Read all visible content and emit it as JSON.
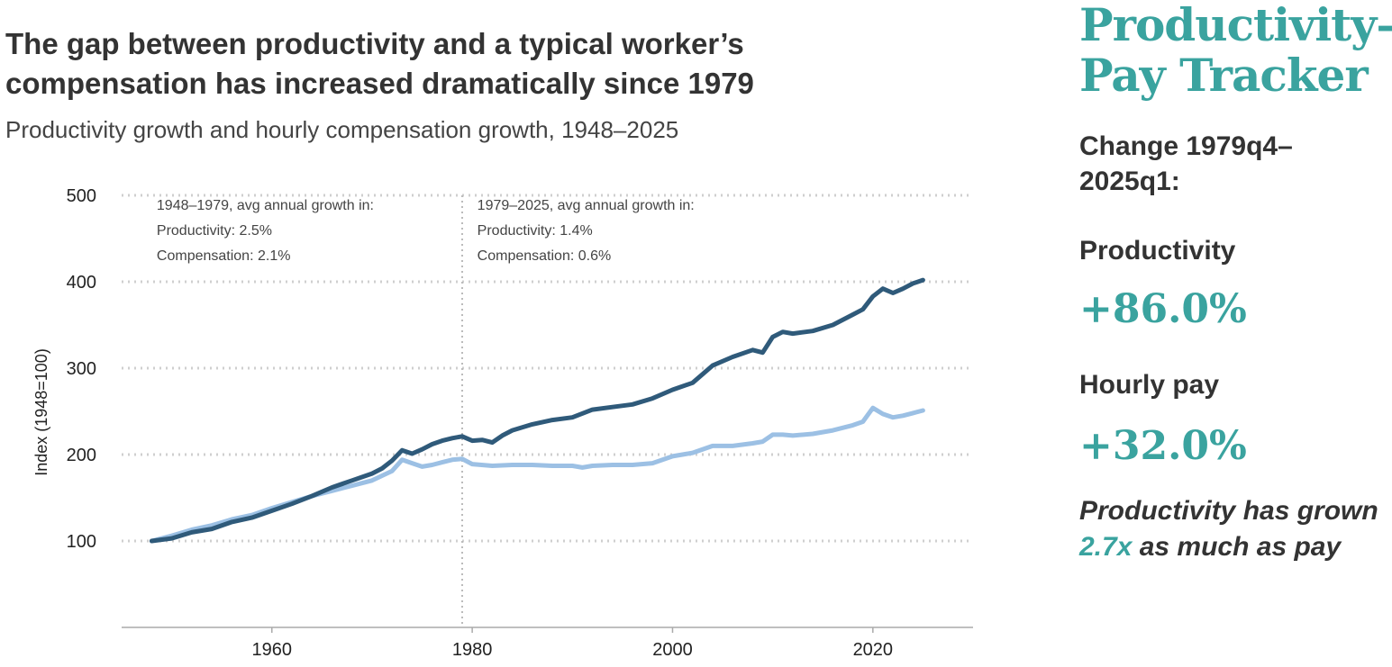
{
  "chart_data": {
    "type": "line",
    "title": "The gap between productivity and a typical worker’s compensation has increased dramatically since 1979",
    "subtitle": "Productivity growth and hourly compensation growth, 1948–2025",
    "ylabel": "Index (1948=100)",
    "xlabel": "",
    "xlim": [
      1945,
      2030
    ],
    "ylim": [
      0,
      500
    ],
    "x_ticks": [
      {
        "value": 1960,
        "label": "1960"
      },
      {
        "value": 1980,
        "label": "1980"
      },
      {
        "value": 2000,
        "label": "2000"
      },
      {
        "value": 2020,
        "label": "2020"
      }
    ],
    "y_ticks": [
      {
        "value": 100,
        "label": "100"
      },
      {
        "value": 200,
        "label": "200"
      },
      {
        "value": 300,
        "label": "300"
      },
      {
        "value": 400,
        "label": "400"
      },
      {
        "value": 500,
        "label": "500"
      }
    ],
    "grid": "horizontal dotted",
    "divider_year": 1979,
    "series": [
      {
        "key": "productivity",
        "color": "#2f5a7a",
        "points": [
          [
            1948,
            100
          ],
          [
            1950,
            103
          ],
          [
            1952,
            110
          ],
          [
            1954,
            114
          ],
          [
            1956,
            122
          ],
          [
            1958,
            127
          ],
          [
            1960,
            135
          ],
          [
            1962,
            143
          ],
          [
            1964,
            152
          ],
          [
            1966,
            162
          ],
          [
            1968,
            170
          ],
          [
            1970,
            178
          ],
          [
            1971,
            184
          ],
          [
            1972,
            193
          ],
          [
            1973,
            205
          ],
          [
            1974,
            201
          ],
          [
            1975,
            206
          ],
          [
            1976,
            212
          ],
          [
            1977,
            216
          ],
          [
            1978,
            219
          ],
          [
            1979,
            221
          ],
          [
            1980,
            216
          ],
          [
            1981,
            217
          ],
          [
            1982,
            214
          ],
          [
            1983,
            222
          ],
          [
            1984,
            228
          ],
          [
            1986,
            235
          ],
          [
            1988,
            240
          ],
          [
            1990,
            243
          ],
          [
            1992,
            252
          ],
          [
            1994,
            255
          ],
          [
            1996,
            258
          ],
          [
            1998,
            265
          ],
          [
            2000,
            275
          ],
          [
            2002,
            283
          ],
          [
            2004,
            303
          ],
          [
            2006,
            313
          ],
          [
            2008,
            321
          ],
          [
            2009,
            318
          ],
          [
            2010,
            336
          ],
          [
            2011,
            342
          ],
          [
            2012,
            340
          ],
          [
            2014,
            343
          ],
          [
            2016,
            350
          ],
          [
            2018,
            362
          ],
          [
            2019,
            368
          ],
          [
            2020,
            383
          ],
          [
            2021,
            392
          ],
          [
            2022,
            387
          ],
          [
            2023,
            392
          ],
          [
            2024,
            398
          ],
          [
            2025,
            402
          ]
        ]
      },
      {
        "key": "compensation",
        "color": "#9cc0e4",
        "points": [
          [
            1948,
            100
          ],
          [
            1950,
            106
          ],
          [
            1952,
            113
          ],
          [
            1954,
            118
          ],
          [
            1956,
            125
          ],
          [
            1958,
            130
          ],
          [
            1960,
            138
          ],
          [
            1962,
            145
          ],
          [
            1964,
            152
          ],
          [
            1966,
            158
          ],
          [
            1968,
            164
          ],
          [
            1970,
            170
          ],
          [
            1972,
            181
          ],
          [
            1973,
            194
          ],
          [
            1974,
            190
          ],
          [
            1975,
            186
          ],
          [
            1976,
            188
          ],
          [
            1977,
            191
          ],
          [
            1978,
            194
          ],
          [
            1979,
            195
          ],
          [
            1980,
            189
          ],
          [
            1982,
            187
          ],
          [
            1984,
            188
          ],
          [
            1986,
            188
          ],
          [
            1988,
            187
          ],
          [
            1990,
            187
          ],
          [
            1991,
            185
          ],
          [
            1992,
            187
          ],
          [
            1994,
            188
          ],
          [
            1996,
            188
          ],
          [
            1998,
            190
          ],
          [
            2000,
            198
          ],
          [
            2002,
            202
          ],
          [
            2004,
            210
          ],
          [
            2006,
            210
          ],
          [
            2008,
            213
          ],
          [
            2009,
            215
          ],
          [
            2010,
            223
          ],
          [
            2011,
            223
          ],
          [
            2012,
            222
          ],
          [
            2014,
            224
          ],
          [
            2016,
            228
          ],
          [
            2018,
            234
          ],
          [
            2019,
            238
          ],
          [
            2020,
            254
          ],
          [
            2021,
            247
          ],
          [
            2022,
            243
          ],
          [
            2023,
            245
          ],
          [
            2024,
            248
          ],
          [
            2025,
            251
          ]
        ]
      }
    ],
    "annotations": [
      {
        "x": 1948.5,
        "lines": [
          "1948–1979, avg annual growth in:",
          "Productivity: 2.5%",
          "Compensation: 2.1%"
        ]
      },
      {
        "x": 1980.5,
        "lines": [
          "1979–2025, avg annual growth in:",
          "Productivity: 1.4%",
          "Compensation: 0.6%"
        ]
      }
    ]
  },
  "sidebar": {
    "brand_line1": "Productivity–",
    "brand_line2": "Pay Tracker",
    "change_heading_line1": "Change 1979q4–",
    "change_heading_line2": "2025q1:",
    "productivity_label": "Productivity",
    "productivity_value": "+86.0%",
    "pay_label": "Hourly pay",
    "pay_value": "+32.0%",
    "note_before": "Productivity has grown ",
    "note_highlight": "2.7x",
    "note_after": " as much as pay"
  }
}
